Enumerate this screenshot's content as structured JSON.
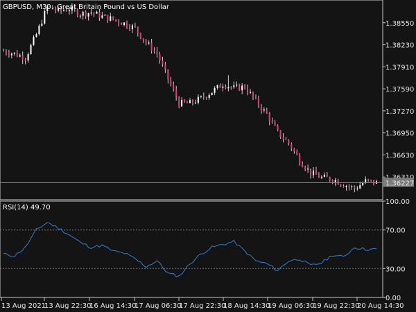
{
  "window": {
    "symbol_timeframe": "GBPUSD, M30:",
    "instrument_name": "Great Britain Pound vs US Dollar"
  },
  "colors": {
    "background": "#141414",
    "axis": "#c8c8c8",
    "candle_body": "#e0407a",
    "candle_wick": "#d0d0d0",
    "bid_line": "#808080",
    "price_tag_bg": "#7a7a7a",
    "rsi_line": "#2f7fd2",
    "level_line": "#7a7a7a"
  },
  "price_panel": {
    "current_price": "1.36227",
    "tick_labels": [
      "1.38550",
      "1.38230",
      "1.37910",
      "1.37590",
      "1.37270",
      "1.36950",
      "1.36630",
      "1.36310"
    ]
  },
  "rsi_panel": {
    "label": "RSI(14) 49.70",
    "tick_labels": [
      "100.00",
      "70.00",
      "30.00",
      "0.00"
    ],
    "levels": [
      70,
      30
    ]
  },
  "time_axis": {
    "labels": [
      "13 Aug 2021",
      "13 Aug 22:30",
      "16 Aug 14:30",
      "17 Aug 06:30",
      "17 Aug 22:30",
      "18 Aug 14:30",
      "19 Aug 06:30",
      "19 Aug 22:30",
      "20 Aug 14:30"
    ]
  },
  "chart_data": [
    {
      "type": "candlestick",
      "title": "GBPUSD, M30:  Great Britain Pound vs US Dollar",
      "ylim": [
        1.3598,
        1.3888
      ],
      "y_ticks": [
        1.3855,
        1.3823,
        1.3791,
        1.3759,
        1.3727,
        1.3695,
        1.3663,
        1.3631
      ],
      "current_price": 1.36227,
      "close_path": [
        {
          "i": 0,
          "v": 1.3814
        },
        {
          "i": 4,
          "v": 1.381
        },
        {
          "i": 8,
          "v": 1.3804
        },
        {
          "i": 12,
          "v": 1.3838
        },
        {
          "i": 16,
          "v": 1.3878
        },
        {
          "i": 20,
          "v": 1.3872
        },
        {
          "i": 24,
          "v": 1.3875
        },
        {
          "i": 28,
          "v": 1.3868
        },
        {
          "i": 32,
          "v": 1.387
        },
        {
          "i": 36,
          "v": 1.3864
        },
        {
          "i": 40,
          "v": 1.386
        },
        {
          "i": 44,
          "v": 1.3854
        },
        {
          "i": 48,
          "v": 1.3847
        },
        {
          "i": 52,
          "v": 1.3826
        },
        {
          "i": 56,
          "v": 1.381
        },
        {
          "i": 60,
          "v": 1.3773
        },
        {
          "i": 64,
          "v": 1.3738
        },
        {
          "i": 68,
          "v": 1.3738
        },
        {
          "i": 72,
          "v": 1.3745
        },
        {
          "i": 76,
          "v": 1.3755
        },
        {
          "i": 80,
          "v": 1.3766
        },
        {
          "i": 84,
          "v": 1.376
        },
        {
          "i": 88,
          "v": 1.3762
        },
        {
          "i": 92,
          "v": 1.3741
        },
        {
          "i": 96,
          "v": 1.3722
        },
        {
          "i": 100,
          "v": 1.3695
        },
        {
          "i": 104,
          "v": 1.368
        },
        {
          "i": 108,
          "v": 1.3655
        },
        {
          "i": 112,
          "v": 1.3637
        },
        {
          "i": 116,
          "v": 1.363
        },
        {
          "i": 120,
          "v": 1.3628
        },
        {
          "i": 124,
          "v": 1.362
        },
        {
          "i": 128,
          "v": 1.3614
        },
        {
          "i": 132,
          "v": 1.3625
        },
        {
          "i": 136,
          "v": 1.3623
        }
      ]
    },
    {
      "type": "line",
      "title": "RSI(14) 49.70",
      "ylim": [
        0,
        100
      ],
      "y_ticks": [
        100,
        70,
        30,
        0
      ],
      "levels": [
        70,
        30
      ],
      "values": [
        {
          "i": 0,
          "v": 45
        },
        {
          "i": 4,
          "v": 43
        },
        {
          "i": 8,
          "v": 52
        },
        {
          "i": 12,
          "v": 70
        },
        {
          "i": 16,
          "v": 78
        },
        {
          "i": 20,
          "v": 72
        },
        {
          "i": 24,
          "v": 65
        },
        {
          "i": 28,
          "v": 57
        },
        {
          "i": 32,
          "v": 52
        },
        {
          "i": 36,
          "v": 54
        },
        {
          "i": 40,
          "v": 48
        },
        {
          "i": 44,
          "v": 46
        },
        {
          "i": 48,
          "v": 40
        },
        {
          "i": 52,
          "v": 32
        },
        {
          "i": 56,
          "v": 38
        },
        {
          "i": 60,
          "v": 25
        },
        {
          "i": 64,
          "v": 22
        },
        {
          "i": 68,
          "v": 35
        },
        {
          "i": 72,
          "v": 45
        },
        {
          "i": 76,
          "v": 52
        },
        {
          "i": 80,
          "v": 55
        },
        {
          "i": 84,
          "v": 58
        },
        {
          "i": 88,
          "v": 48
        },
        {
          "i": 92,
          "v": 38
        },
        {
          "i": 96,
          "v": 35
        },
        {
          "i": 100,
          "v": 28
        },
        {
          "i": 104,
          "v": 38
        },
        {
          "i": 108,
          "v": 40
        },
        {
          "i": 112,
          "v": 33
        },
        {
          "i": 116,
          "v": 36
        },
        {
          "i": 120,
          "v": 44
        },
        {
          "i": 124,
          "v": 42
        },
        {
          "i": 128,
          "v": 52
        },
        {
          "i": 132,
          "v": 50
        },
        {
          "i": 136,
          "v": 50
        }
      ]
    }
  ]
}
